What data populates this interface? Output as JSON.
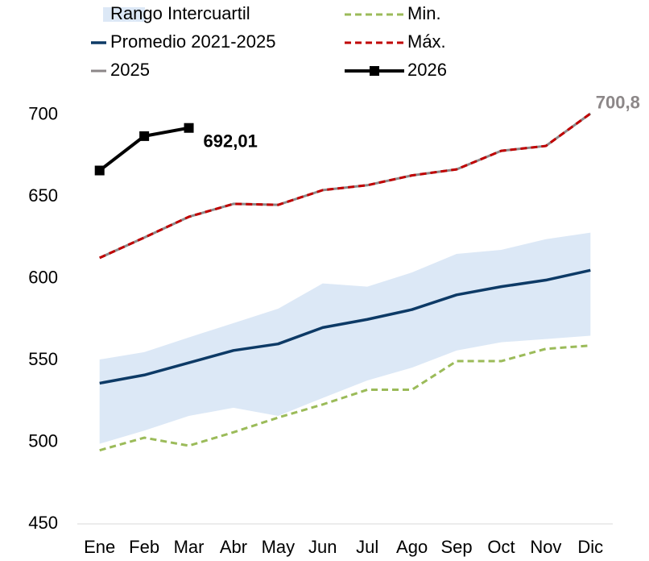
{
  "chart_data": {
    "type": "line",
    "categories": [
      "Ene",
      "Feb",
      "Mar",
      "Abr",
      "May",
      "Jun",
      "Jul",
      "Ago",
      "Sep",
      "Oct",
      "Nov",
      "Dic"
    ],
    "ylim": [
      450,
      710
    ],
    "yticks": [
      450,
      500,
      550,
      600,
      650,
      700
    ],
    "grid": false,
    "legend": "top",
    "series": [
      {
        "name": "Rango Intercuartil",
        "style": "area",
        "color": "#dce8f6",
        "lower": [
          499,
          507,
          516,
          521,
          516,
          527,
          537.7,
          545.5,
          556,
          561,
          563,
          565
        ],
        "upper": [
          550.5,
          555,
          564,
          572.7,
          581.5,
          597,
          595,
          603.7,
          615,
          617.5,
          624,
          628
        ]
      },
      {
        "name": "Promedio 2021-2025",
        "style": "solid",
        "color": "#0d3a66",
        "values": [
          536,
          541,
          548.5,
          556,
          560,
          570,
          575,
          581,
          590,
          595,
          599,
          605
        ]
      },
      {
        "name": "2025",
        "style": "solid",
        "color": "#8c8788",
        "values": [
          612.6,
          625,
          637.7,
          645.6,
          645,
          654,
          657,
          663,
          666.7,
          678,
          681,
          700.8
        ],
        "value_labels": [
          null,
          null,
          null,
          null,
          null,
          null,
          null,
          null,
          null,
          null,
          null,
          "700,8"
        ]
      },
      {
        "name": "Min.",
        "style": "dashed",
        "color": "#9bbb59",
        "values": [
          495,
          502.7,
          497.8,
          506,
          515,
          523,
          532,
          532,
          549.5,
          549.5,
          557,
          559
        ]
      },
      {
        "name": "Máx.",
        "style": "dashed",
        "color": "#c00000",
        "values": [
          612.6,
          625,
          637.7,
          645.6,
          645,
          654,
          657,
          663,
          666.7,
          678,
          681,
          700.8
        ]
      },
      {
        "name": "2026",
        "style": "marker",
        "color": "#000000",
        "values": [
          666,
          687,
          692.01,
          null,
          null,
          null,
          null,
          null,
          null,
          null,
          null,
          null
        ],
        "value_labels": [
          null,
          null,
          "692,01",
          null,
          null,
          null,
          null,
          null,
          null,
          null,
          null,
          null
        ]
      }
    ]
  }
}
